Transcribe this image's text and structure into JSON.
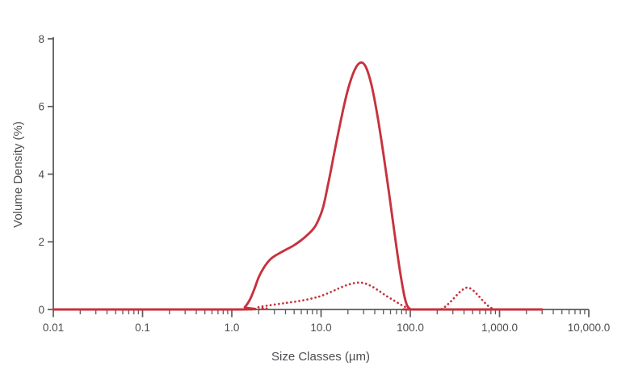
{
  "chart_data": {
    "type": "line",
    "title": "",
    "xlabel": "Size Classes (µm)",
    "ylabel": "Volume Density (%)",
    "xscale": "log",
    "xlim": [
      0.01,
      10000
    ],
    "ylim": [
      0,
      8
    ],
    "grid": false,
    "legend": "none",
    "colors": {
      "series_red": "#c7323d",
      "axis": "#5a5a5f",
      "text": "#4d4d52"
    },
    "xticks": [
      {
        "value": 0.01,
        "label": "0.01"
      },
      {
        "value": 0.1,
        "label": "0.1"
      },
      {
        "value": 1,
        "label": "1.0"
      },
      {
        "value": 10,
        "label": "10.0"
      },
      {
        "value": 100,
        "label": "100.0"
      },
      {
        "value": 1000,
        "label": "1,000.0"
      },
      {
        "value": 10000,
        "label": "10,000.0"
      }
    ],
    "yticks": [
      {
        "value": 0,
        "label": "0"
      },
      {
        "value": 2,
        "label": "2"
      },
      {
        "value": 4,
        "label": "4"
      },
      {
        "value": 6,
        "label": "6"
      },
      {
        "value": 8,
        "label": "8"
      }
    ],
    "series": [
      {
        "name": "volume-density-solid",
        "line_style": "solid",
        "color": "#c7323d",
        "points": [
          [
            0.01,
            0
          ],
          [
            1.25,
            0
          ],
          [
            1.4,
            0.07
          ],
          [
            1.6,
            0.3
          ],
          [
            1.8,
            0.62
          ],
          [
            2.0,
            0.95
          ],
          [
            2.3,
            1.25
          ],
          [
            2.7,
            1.48
          ],
          [
            3.2,
            1.62
          ],
          [
            4.0,
            1.76
          ],
          [
            5.0,
            1.9
          ],
          [
            6.0,
            2.05
          ],
          [
            7.0,
            2.2
          ],
          [
            8.0,
            2.35
          ],
          [
            9.0,
            2.55
          ],
          [
            10.5,
            3.0
          ],
          [
            12,
            3.7
          ],
          [
            14,
            4.6
          ],
          [
            17,
            5.7
          ],
          [
            20,
            6.5
          ],
          [
            24,
            7.1
          ],
          [
            28,
            7.3
          ],
          [
            32,
            7.15
          ],
          [
            37,
            6.6
          ],
          [
            43,
            5.7
          ],
          [
            50,
            4.6
          ],
          [
            58,
            3.4
          ],
          [
            67,
            2.2
          ],
          [
            76,
            1.2
          ],
          [
            85,
            0.45
          ],
          [
            92,
            0.12
          ],
          [
            100,
            0.01
          ],
          [
            110,
            0
          ],
          [
            3000,
            0
          ]
        ]
      },
      {
        "name": "volume-density-dotted",
        "line_style": "dotted",
        "color": "#c7323d",
        "points": [
          [
            0.01,
            0
          ],
          [
            1.6,
            0
          ],
          [
            2.0,
            0.07
          ],
          [
            2.6,
            0.12
          ],
          [
            3.5,
            0.17
          ],
          [
            4.5,
            0.21
          ],
          [
            6,
            0.26
          ],
          [
            8,
            0.33
          ],
          [
            10,
            0.4
          ],
          [
            13,
            0.52
          ],
          [
            16,
            0.63
          ],
          [
            20,
            0.73
          ],
          [
            25,
            0.79
          ],
          [
            30,
            0.78
          ],
          [
            36,
            0.7
          ],
          [
            44,
            0.56
          ],
          [
            54,
            0.4
          ],
          [
            66,
            0.26
          ],
          [
            80,
            0.13
          ],
          [
            95,
            0.04
          ],
          [
            115,
            0
          ],
          [
            210,
            0
          ],
          [
            255,
            0.12
          ],
          [
            300,
            0.3
          ],
          [
            360,
            0.52
          ],
          [
            420,
            0.64
          ],
          [
            480,
            0.61
          ],
          [
            560,
            0.45
          ],
          [
            650,
            0.26
          ],
          [
            750,
            0.1
          ],
          [
            850,
            0.02
          ],
          [
            950,
            0
          ],
          [
            3000,
            0
          ]
        ]
      }
    ]
  }
}
